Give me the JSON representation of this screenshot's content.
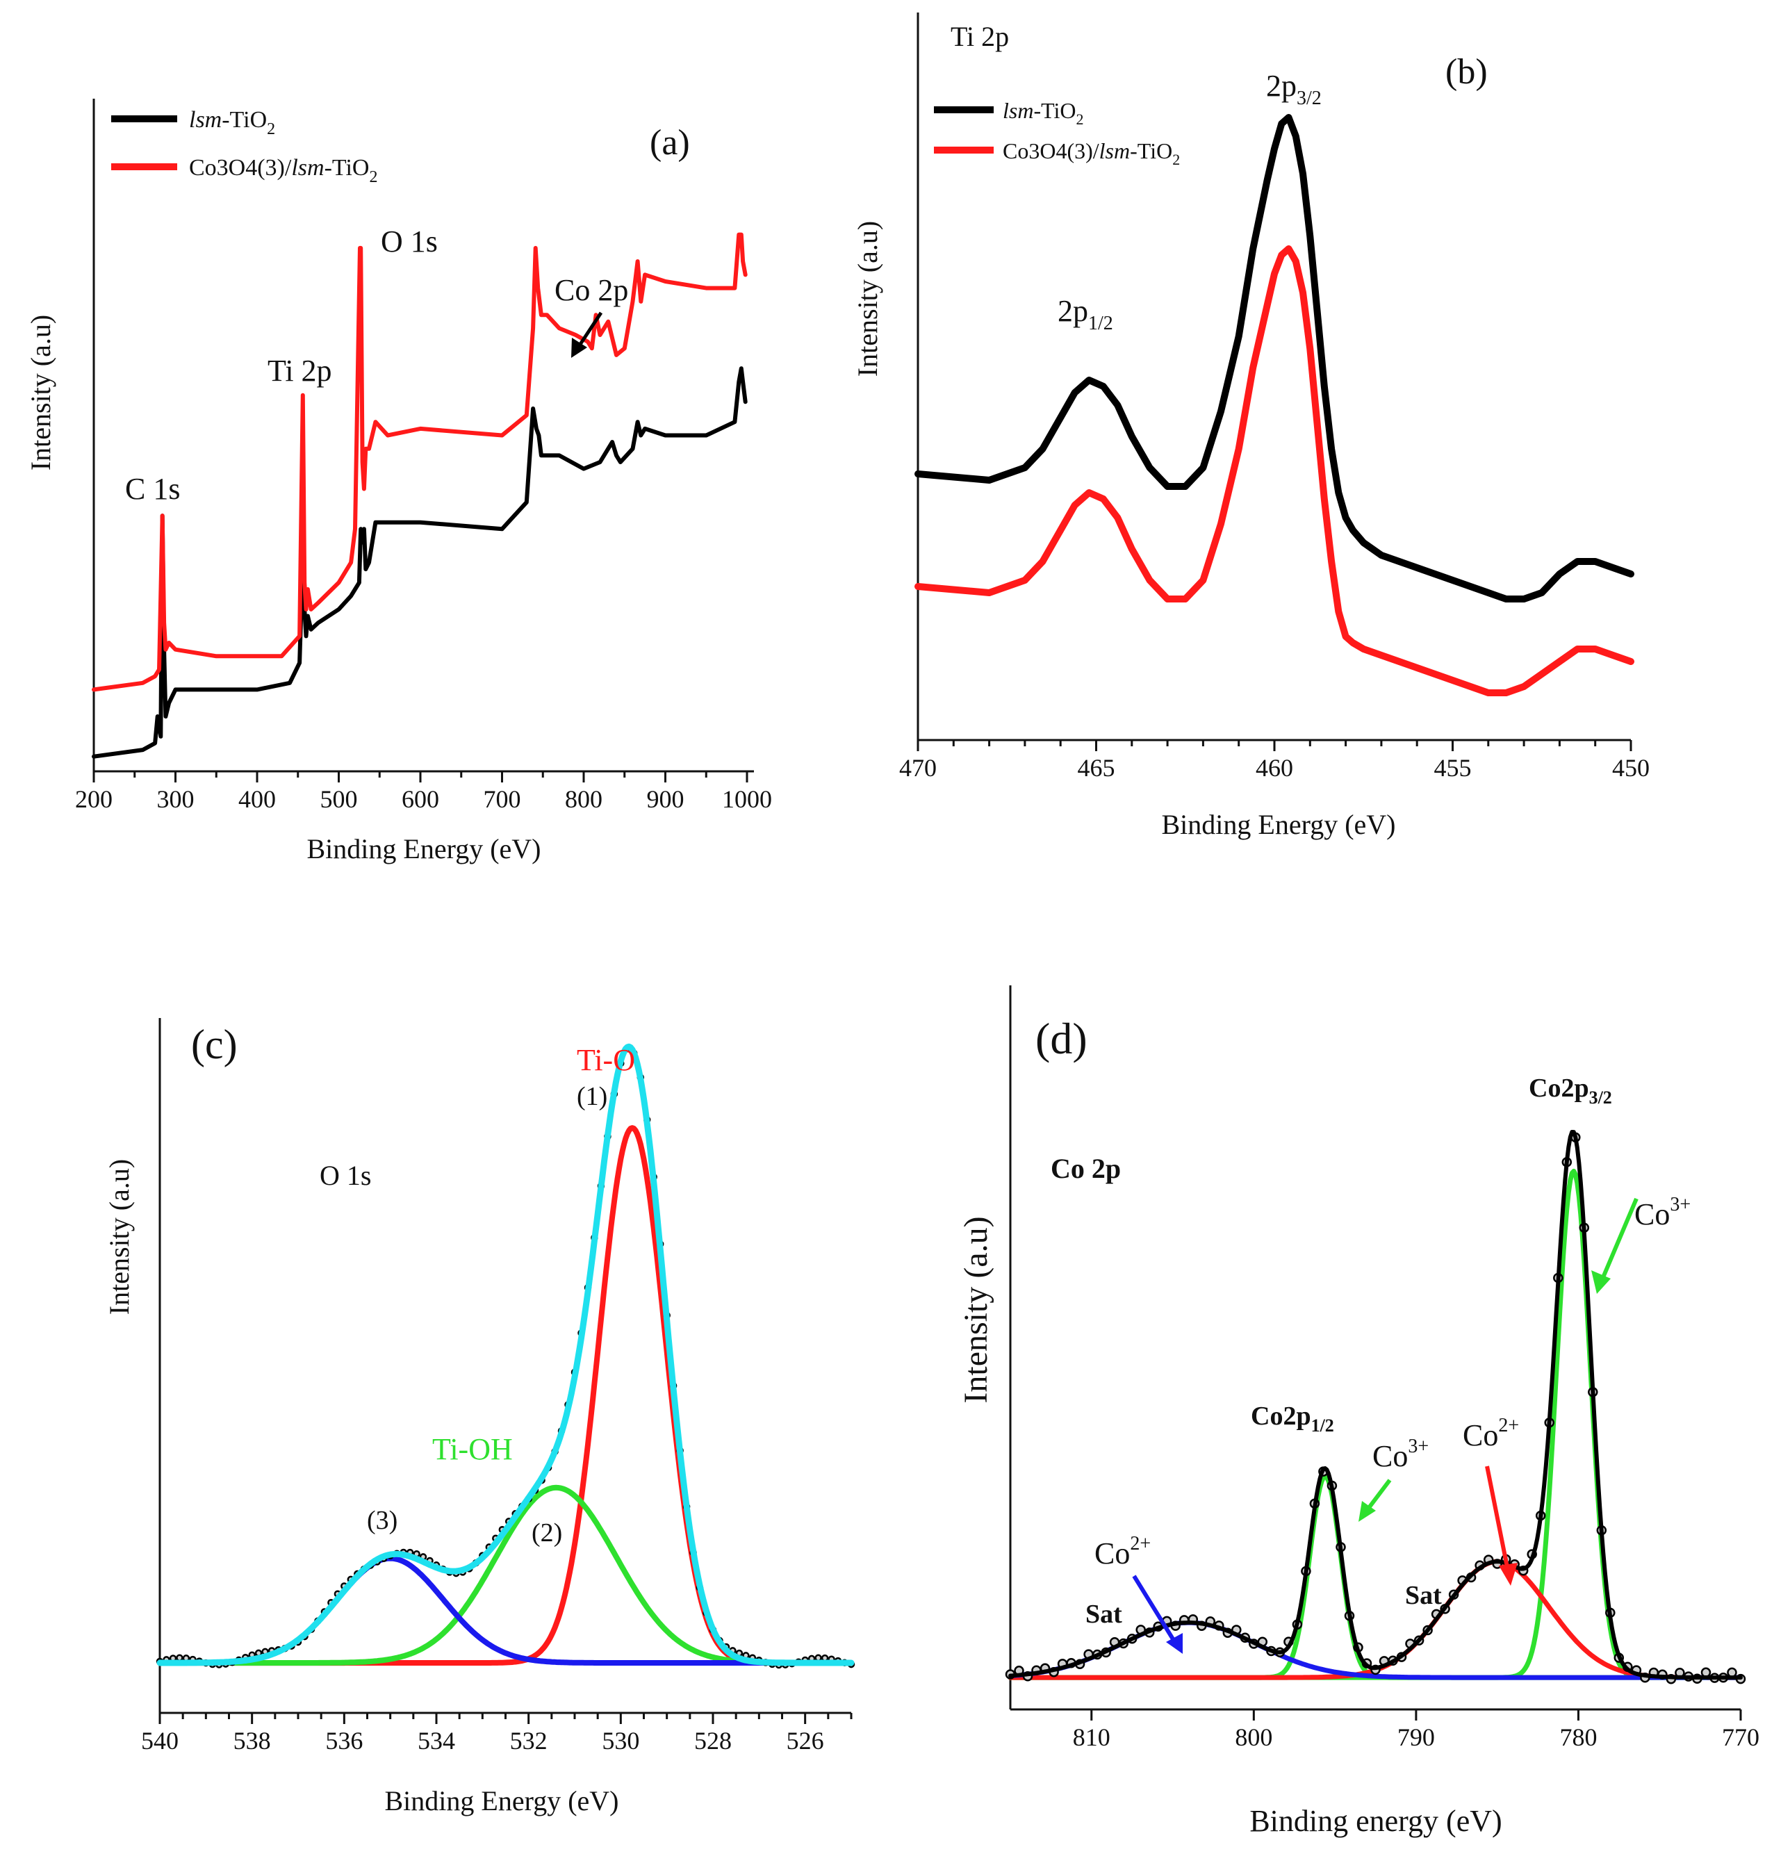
{
  "colors": {
    "black": "#000000",
    "red": "#ff1a1a",
    "green": "#2ee02e",
    "blue": "#1a1aee",
    "cyan": "#1fe0ee"
  },
  "chart_data": [
    {
      "id": "a",
      "type": "line",
      "panel_label": "(a)",
      "xlabel": "Binding Energy (eV)",
      "ylabel": "Intensity (a.u)",
      "xlim": [
        200,
        1000
      ],
      "ylim": [
        0,
        100
      ],
      "xticks": [
        200,
        300,
        400,
        500,
        600,
        700,
        800,
        900,
        1000
      ],
      "legend": {
        "position": "top-left",
        "entries": [
          {
            "series": 0,
            "italic": "lsm",
            "text": "-TiO",
            "sub": "2"
          },
          {
            "series": 1,
            "text": "Co3O4(3)/",
            "italic": "lsm",
            "text2": "-TiO",
            "sub": "2"
          }
        ]
      },
      "annotations": [
        "C 1s",
        "Ti 2p",
        "O 1s",
        "Co 2p"
      ],
      "series": [
        {
          "name": "lsm-TiO2",
          "color": "black",
          "x": [
            200,
            260,
            275,
            278,
            282,
            284,
            286,
            288,
            292,
            300,
            320,
            400,
            440,
            452,
            456,
            458,
            460,
            462,
            466,
            475,
            500,
            515,
            525,
            527,
            529,
            531,
            533,
            537,
            545,
            560,
            600,
            700,
            730,
            738,
            742,
            745,
            748,
            755,
            770,
            800,
            820,
            835,
            840,
            845,
            860,
            866,
            870,
            875,
            900,
            950,
            985,
            990,
            993,
            995,
            998
          ],
          "y": [
            2,
            3,
            4,
            8,
            5,
            38,
            18,
            8,
            10,
            12,
            12,
            12,
            13,
            16,
            32,
            24,
            20,
            23,
            21,
            22,
            24,
            26,
            28,
            36,
            34,
            36,
            30,
            31,
            37,
            37,
            37,
            36,
            40,
            54,
            51,
            50,
            47,
            47,
            47,
            45,
            46,
            49,
            47,
            46,
            48,
            52,
            50,
            51,
            50,
            50,
            52,
            58,
            60,
            58,
            55
          ]
        },
        {
          "name": "Co3O4(3)/lsm-TiO2",
          "color": "red",
          "x": [
            200,
            260,
            275,
            280,
            284,
            286,
            288,
            292,
            300,
            350,
            430,
            452,
            456,
            458,
            460,
            462,
            466,
            475,
            500,
            515,
            520,
            526,
            527,
            529,
            531,
            533,
            537,
            545,
            560,
            600,
            700,
            730,
            738,
            741,
            744,
            748,
            755,
            770,
            790,
            805,
            810,
            815,
            820,
            830,
            840,
            850,
            860,
            866,
            870,
            875,
            900,
            950,
            985,
            990,
            993,
            995,
            998
          ],
          "y": [
            12,
            13,
            14,
            15,
            38,
            22,
            18,
            19,
            18,
            17,
            17,
            20,
            56,
            28,
            24,
            27,
            24,
            25,
            28,
            31,
            36,
            78,
            78,
            46,
            42,
            48,
            48,
            52,
            50,
            51,
            50,
            53,
            66,
            78,
            72,
            68,
            68,
            66,
            65,
            64,
            63,
            68,
            65,
            67,
            62,
            63,
            70,
            76,
            70,
            74,
            73,
            72,
            72,
            80,
            80,
            76,
            74
          ]
        }
      ]
    },
    {
      "id": "b",
      "type": "line",
      "panel_label": "(b)",
      "title": "Ti 2p",
      "xlabel": "Binding Energy (eV)",
      "ylabel": "Intensity (a.u)",
      "xlim": [
        470,
        450
      ],
      "ylim": [
        0,
        100
      ],
      "xticks": [
        470,
        465,
        460,
        455,
        450
      ],
      "legend": {
        "position": "top-left",
        "entries": [
          {
            "series": 0,
            "italic": "lsm",
            "text": "-TiO",
            "sub": "2"
          },
          {
            "series": 1,
            "text": "Co3O4(3)/",
            "italic": "lsm",
            "text2": "-TiO",
            "sub": "2"
          }
        ]
      },
      "annotations": [
        {
          "text": "2p",
          "sub": "1/2"
        },
        {
          "text": "2p",
          "sub": "3/2"
        }
      ],
      "series": [
        {
          "name": "lsm-TiO2",
          "color": "black",
          "x": [
            470,
            468,
            467,
            466.5,
            466,
            465.6,
            465.2,
            464.8,
            464.4,
            464,
            463.5,
            463,
            462.5,
            462,
            461.5,
            461,
            460.6,
            460.2,
            460,
            459.8,
            459.6,
            459.4,
            459.2,
            459,
            458.8,
            458.6,
            458.4,
            458.2,
            458,
            457.8,
            457.5,
            457,
            456.5,
            456,
            455,
            454,
            453.5,
            453,
            452.5,
            452,
            451.5,
            451,
            450.5,
            450
          ],
          "y": [
            42,
            41,
            43,
            46,
            51,
            55,
            57,
            56,
            53,
            48,
            43,
            40,
            40,
            43,
            52,
            64,
            78,
            89,
            94,
            98,
            99,
            96,
            90,
            80,
            68,
            56,
            46,
            39,
            35,
            33,
            31,
            29,
            28,
            27,
            25,
            23,
            22,
            22,
            23,
            26,
            28,
            28,
            27,
            26
          ]
        },
        {
          "name": "Co3O4(3)/lsm-TiO2",
          "color": "red",
          "x": [
            470,
            468,
            467,
            466.5,
            466,
            465.6,
            465.2,
            464.8,
            464.4,
            464,
            463.5,
            463,
            462.5,
            462,
            461.5,
            461,
            460.6,
            460.2,
            460,
            459.8,
            459.6,
            459.4,
            459.2,
            459,
            458.8,
            458.6,
            458.4,
            458.2,
            458,
            457.8,
            457.5,
            457,
            456.5,
            456,
            455,
            454,
            453.5,
            453,
            452.5,
            452,
            451.5,
            451,
            450.5,
            450
          ],
          "y": [
            24,
            23,
            25,
            28,
            33,
            37,
            39,
            38,
            35,
            30,
            25,
            22,
            22,
            25,
            34,
            46,
            59,
            69,
            74,
            77,
            78,
            76,
            71,
            62,
            50,
            38,
            28,
            20,
            16,
            15,
            14,
            13,
            12,
            11,
            9,
            7,
            7,
            8,
            10,
            12,
            14,
            14,
            13,
            12
          ]
        }
      ]
    },
    {
      "id": "c",
      "type": "line",
      "panel_label": "(c)",
      "title": "O 1s",
      "xlabel": "Binding Energy (eV)",
      "ylabel": "Intensity (a.u)",
      "xlim": [
        540,
        525
      ],
      "ylim": [
        0,
        100
      ],
      "xticks": [
        540,
        538,
        536,
        534,
        532,
        530,
        528,
        526
      ],
      "annotations": [
        "Ti-O",
        "(1)",
        "Ti-OH",
        "(2)",
        "(3)"
      ],
      "baseline": 7,
      "components": [
        {
          "name": "Ti-O (1)",
          "color": "red",
          "center": 529.75,
          "height": 87,
          "sigma": 0.72
        },
        {
          "name": "Ti-OH (2)",
          "color": "green",
          "center": 531.4,
          "height": 28.5,
          "sigma": 1.3
        },
        {
          "name": "(3)",
          "color": "blue",
          "center": 535.0,
          "height": 17,
          "sigma": 1.15
        }
      ],
      "envelope": {
        "name": "Fit envelope",
        "color": "cyan"
      },
      "data_points": {
        "name": "Measured",
        "color": "black",
        "marker": "circle"
      }
    },
    {
      "id": "d",
      "type": "line",
      "panel_label": "(d)",
      "title": "Co 2p",
      "xlabel": "Binding energy (eV)",
      "ylabel": "Intensity (a.u)",
      "xlim": [
        815,
        770
      ],
      "ylim": [
        0,
        100
      ],
      "xticks": [
        810,
        800,
        790,
        780,
        770
      ],
      "annotations": [
        {
          "text": "Co2p",
          "sub": "3/2"
        },
        {
          "text": "Co2p",
          "sub": "1/2"
        },
        {
          "text": "Co",
          "sup": "3+"
        },
        {
          "text": "Co",
          "sup": "3+"
        },
        {
          "text": "Co",
          "sup": "2+"
        },
        {
          "text": "Co",
          "sup": "2+"
        },
        {
          "text": "Sat"
        },
        {
          "text": "Sat"
        }
      ],
      "baseline": 5,
      "components": [
        {
          "name": "Co3+ (Co2p3/2)",
          "color": "green",
          "center": 780.3,
          "height": 83,
          "sigma": 1.05
        },
        {
          "name": "Co3+ (Co2p1/2)",
          "color": "green",
          "center": 795.6,
          "height": 33,
          "sigma": 0.95
        },
        {
          "name": "Co2+ / Sat (Co2p3/2)",
          "color": "red",
          "center": 785.0,
          "height": 19,
          "sigma": 3.2
        },
        {
          "name": "Co2+ / Sat (Co2p1/2)",
          "color": "blue",
          "center": 804.0,
          "height": 9,
          "sigma": 4.2
        }
      ],
      "envelope": {
        "name": "Fit envelope",
        "color": "black"
      },
      "data_points": {
        "name": "Measured",
        "color": "black",
        "marker": "circle"
      }
    }
  ]
}
